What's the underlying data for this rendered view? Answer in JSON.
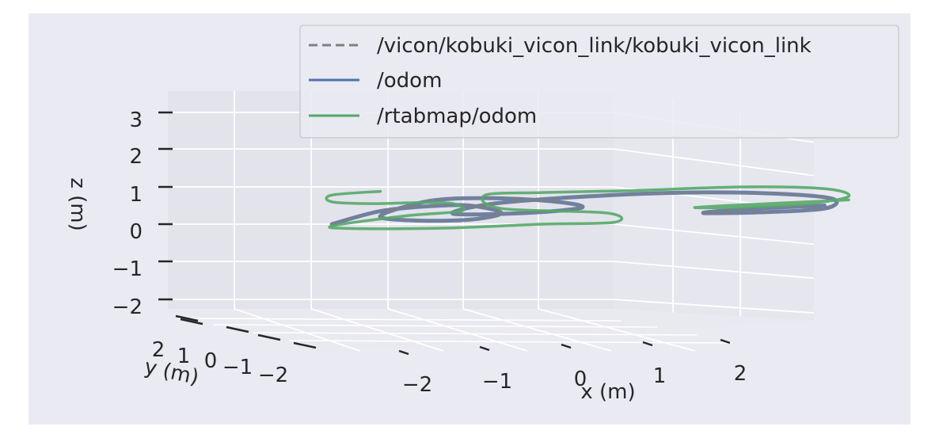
{
  "chart_data": {
    "type": "line3d",
    "xlabel": "x (m)",
    "ylabel": "y (m)",
    "zlabel": "z (m)",
    "x_ticks": [
      "−2",
      "−1",
      "0",
      "1",
      "2"
    ],
    "y_ticks": [
      "2",
      "1",
      "0",
      "−1",
      "−2"
    ],
    "z_ticks": [
      "3",
      "2",
      "1",
      "0",
      "−1",
      "−2"
    ],
    "legend_position": "top-right",
    "grid": true,
    "series": [
      {
        "name": "/vicon/kobuki_vicon_link/kobuki_vicon_link",
        "style": "dashed",
        "color": "#7f7f7f",
        "points": [
          [
            -2.9,
            0.0
          ],
          [
            -2.3,
            0.35
          ],
          [
            -1.7,
            0.48
          ],
          [
            -1.2,
            0.5
          ],
          [
            -0.8,
            0.3
          ],
          [
            -1.2,
            0.12
          ],
          [
            -1.9,
            0.1
          ],
          [
            -2.3,
            0.22
          ],
          [
            -1.7,
            0.62
          ],
          [
            -1.0,
            0.7
          ],
          [
            -0.2,
            0.62
          ],
          [
            0.2,
            0.45
          ],
          [
            -0.5,
            0.3
          ],
          [
            -1.4,
            0.28
          ],
          [
            -0.9,
            0.55
          ],
          [
            0.3,
            0.75
          ],
          [
            1.5,
            0.85
          ],
          [
            2.6,
            0.82
          ],
          [
            3.3,
            0.68
          ],
          [
            3.2,
            0.42
          ],
          [
            2.4,
            0.32
          ],
          [
            1.7,
            0.3
          ],
          [
            2.2,
            0.4
          ],
          [
            3.2,
            0.5
          ]
        ]
      },
      {
        "name": "/odom",
        "style": "solid",
        "color": "#4c72b0",
        "points": [
          [
            -2.9,
            0.0
          ],
          [
            -2.3,
            0.35
          ],
          [
            -1.7,
            0.48
          ],
          [
            -1.2,
            0.5
          ],
          [
            -0.8,
            0.3
          ],
          [
            -1.2,
            0.12
          ],
          [
            -1.9,
            0.1
          ],
          [
            -2.3,
            0.22
          ],
          [
            -1.7,
            0.62
          ],
          [
            -1.0,
            0.7
          ],
          [
            -0.2,
            0.62
          ],
          [
            0.2,
            0.45
          ],
          [
            -0.5,
            0.3
          ],
          [
            -1.4,
            0.28
          ],
          [
            -0.9,
            0.55
          ],
          [
            0.3,
            0.75
          ],
          [
            1.5,
            0.85
          ],
          [
            2.6,
            0.82
          ],
          [
            3.3,
            0.68
          ],
          [
            3.2,
            0.42
          ],
          [
            2.4,
            0.32
          ],
          [
            1.7,
            0.3
          ],
          [
            2.2,
            0.4
          ],
          [
            3.2,
            0.5
          ]
        ]
      },
      {
        "name": "/rtabmap/odom",
        "style": "solid",
        "color": "#55a868",
        "points": [
          [
            -2.3,
            0.88
          ],
          [
            -2.9,
            0.78
          ],
          [
            -2.9,
            0.6
          ],
          [
            -2.4,
            0.55
          ],
          [
            -1.8,
            0.58
          ],
          [
            -1.4,
            0.55
          ],
          [
            -1.3,
            0.35
          ],
          [
            -2.0,
            0.22
          ],
          [
            -2.9,
            -0.05
          ],
          [
            -2.6,
            -0.12
          ],
          [
            -1.4,
            -0.1
          ],
          [
            -0.3,
            0.0
          ],
          [
            0.6,
            0.05
          ],
          [
            0.5,
            0.3
          ],
          [
            -0.8,
            0.42
          ],
          [
            -1.0,
            0.78
          ],
          [
            -0.3,
            0.85
          ],
          [
            0.8,
            0.9
          ],
          [
            2.2,
            1.0
          ],
          [
            3.2,
            0.95
          ],
          [
            3.5,
            0.75
          ],
          [
            3.0,
            0.55
          ],
          [
            2.1,
            0.45
          ],
          [
            1.6,
            0.45
          ],
          [
            2.5,
            0.55
          ],
          [
            3.5,
            0.65
          ]
        ]
      }
    ]
  }
}
